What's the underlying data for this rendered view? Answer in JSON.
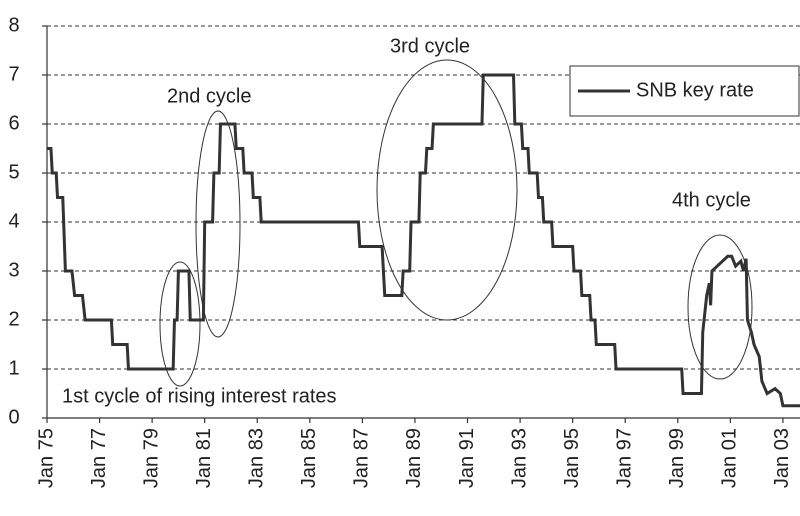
{
  "chart_data": {
    "type": "line",
    "annotations": [
      "1st cycle of rising interest rates",
      "2nd cycle",
      "3rd cycle",
      "4th cycle"
    ],
    "xlim": [
      1975,
      2003.65
    ],
    "xticks": [
      {
        "value": 1975,
        "label": "Jan 75"
      },
      {
        "value": 1977,
        "label": "Jan 77"
      },
      {
        "value": 1979,
        "label": "Jan 79"
      },
      {
        "value": 1981,
        "label": "Jan 81"
      },
      {
        "value": 1983,
        "label": "Jan 83"
      },
      {
        "value": 1985,
        "label": "Jan 85"
      },
      {
        "value": 1987,
        "label": "Jan 87"
      },
      {
        "value": 1989,
        "label": "Jan 89"
      },
      {
        "value": 1991,
        "label": "Jan 91"
      },
      {
        "value": 1993,
        "label": "Jan 93"
      },
      {
        "value": 1995,
        "label": "Jan 95"
      },
      {
        "value": 1997,
        "label": "Jan 97"
      },
      {
        "value": 1999,
        "label": "Jan 99"
      },
      {
        "value": 2001,
        "label": "Jan 01"
      },
      {
        "value": 2003,
        "label": "Jan 03"
      }
    ],
    "ylim": [
      0,
      8
    ],
    "yticks": [
      0,
      1,
      2,
      3,
      4,
      5,
      6,
      7,
      8
    ],
    "grid": true,
    "legend": "upper right",
    "x": [
      1975.0,
      1975.15,
      1975.2,
      1975.35,
      1975.4,
      1975.6,
      1975.7,
      1975.95,
      1976.05,
      1976.35,
      1976.45,
      1977.45,
      1977.5,
      1978.05,
      1978.1,
      1979.8,
      1979.85,
      1979.95,
      1980.0,
      1980.4,
      1980.45,
      1980.95,
      1981.0,
      1981.3,
      1981.35,
      1981.55,
      1981.6,
      1982.15,
      1982.2,
      1982.45,
      1982.5,
      1982.8,
      1982.85,
      1983.1,
      1983.15,
      1986.85,
      1986.9,
      1987.75,
      1987.85,
      1988.5,
      1988.55,
      1988.8,
      1988.85,
      1989.15,
      1989.2,
      1989.4,
      1989.45,
      1989.65,
      1989.7,
      1991.55,
      1991.6,
      1992.75,
      1992.8,
      1993.05,
      1993.1,
      1993.3,
      1993.35,
      1993.65,
      1993.7,
      1993.85,
      1993.9,
      1994.2,
      1994.25,
      1995.0,
      1995.05,
      1995.3,
      1995.35,
      1995.65,
      1995.7,
      1995.85,
      1995.9,
      1996.6,
      1996.65,
      1999.15,
      1999.2,
      1999.9,
      1999.95,
      2000.1,
      2000.2,
      2000.25,
      2000.3,
      2000.5,
      2000.7,
      2000.9,
      2001.05,
      2001.2,
      2001.4,
      2001.5,
      2001.6,
      2001.65,
      2001.8,
      2001.9,
      2002.1,
      2002.2,
      2002.4,
      2002.7,
      2002.9,
      2003.0,
      2003.65
    ],
    "series": [
      {
        "name": "SNB key rate",
        "color": "#333333",
        "values": [
          5.5,
          5.5,
          5,
          5,
          4.5,
          4.5,
          3,
          3,
          2.5,
          2.5,
          2,
          2,
          1.5,
          1.5,
          1,
          1,
          2,
          2,
          3,
          3,
          2,
          2,
          4,
          4,
          5,
          5,
          6,
          6,
          5.5,
          5.5,
          5,
          5,
          4.5,
          4.5,
          4,
          4,
          3.5,
          3.5,
          2.5,
          2.5,
          3,
          3,
          4,
          4,
          5,
          5,
          5.5,
          5.5,
          6,
          6,
          7,
          7,
          6,
          6,
          5.5,
          5.5,
          5,
          5,
          4.5,
          4.5,
          4,
          4,
          3.5,
          3.5,
          3,
          3,
          2.5,
          2.5,
          2,
          2,
          1.5,
          1.5,
          1,
          1,
          0.5,
          0.5,
          1.75,
          2.5,
          2.75,
          2.3,
          3,
          3.1,
          3.2,
          3.3,
          3.3,
          3.1,
          3.2,
          3,
          3.25,
          2,
          1.75,
          1.5,
          1.25,
          0.75,
          0.5,
          0.6,
          0.5,
          0.25,
          0.25
        ]
      }
    ]
  }
}
